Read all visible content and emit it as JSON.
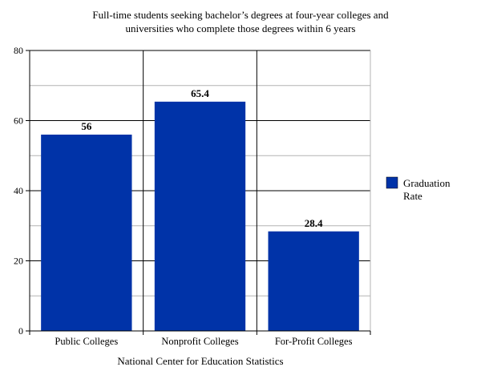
{
  "chart_data": {
    "type": "bar",
    "title_lines": [
      "Full-time students seeking bachelor’s degrees at four-year colleges and",
      "universities who complete those degrees within 6 years"
    ],
    "categories": [
      "Public Colleges",
      "Nonprofit Colleges",
      "For-Profit Colleges"
    ],
    "series": [
      {
        "name": "Graduation Rate",
        "values": [
          56,
          65.4,
          28.4
        ],
        "color": "#0033A8"
      }
    ],
    "data_labels": [
      "56",
      "65.4",
      "28.4"
    ],
    "legend_lines": [
      "Graduation",
      "Rate"
    ],
    "xlabel": "National Center for Education Statistics",
    "ylabel": "",
    "ylim": [
      0,
      80
    ],
    "yticks": [
      0,
      20,
      40,
      60,
      80
    ],
    "grid": true,
    "legend_position": "right"
  }
}
